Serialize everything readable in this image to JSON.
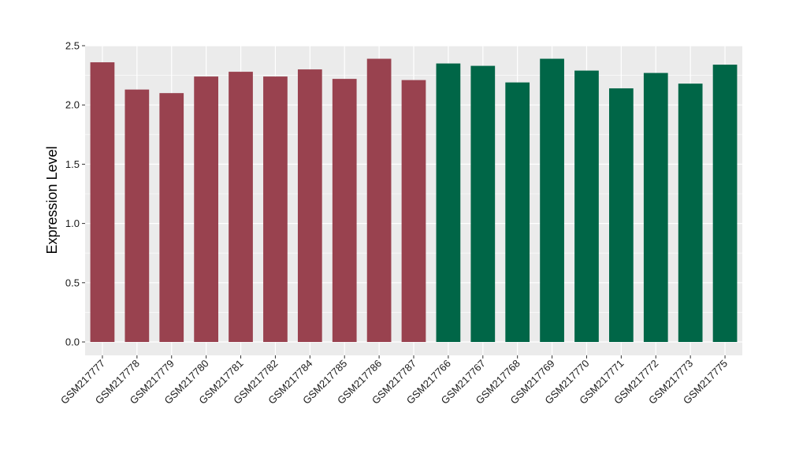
{
  "chart_data": {
    "type": "bar",
    "title": "",
    "xlabel": "",
    "ylabel": "Expression Level",
    "ylim": [
      0,
      2.5
    ],
    "yticks": [
      "0.0",
      "0.5",
      "1.0",
      "1.5",
      "2.0",
      "2.5"
    ],
    "grid": true,
    "categories": [
      "GSM217777",
      "GSM217778",
      "GSM217779",
      "GSM217780",
      "GSM217781",
      "GSM217782",
      "GSM217784",
      "GSM217785",
      "GSM217786",
      "GSM217787",
      "GSM217766",
      "GSM217767",
      "GSM217768",
      "GSM217769",
      "GSM217770",
      "GSM217771",
      "GSM217772",
      "GSM217773",
      "GSM217775"
    ],
    "values": [
      2.36,
      2.13,
      2.1,
      2.24,
      2.28,
      2.24,
      2.3,
      2.22,
      2.39,
      2.21,
      2.35,
      2.33,
      2.19,
      2.39,
      2.29,
      2.14,
      2.27,
      2.18,
      2.34
    ],
    "groups": [
      0,
      0,
      0,
      0,
      0,
      0,
      0,
      0,
      0,
      0,
      1,
      1,
      1,
      1,
      1,
      1,
      1,
      1,
      1
    ],
    "group_colors": [
      "#99424f",
      "#006647"
    ],
    "panel_background": "#ebebeb",
    "grid_color": "#ffffff"
  }
}
